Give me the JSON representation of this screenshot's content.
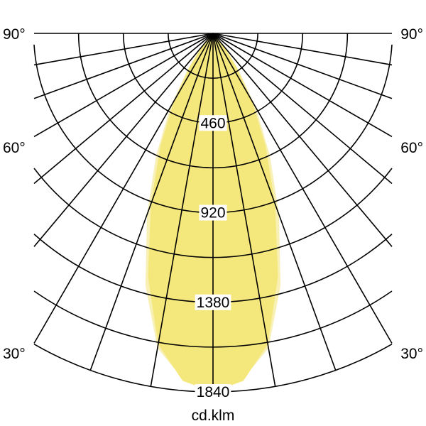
{
  "chart_data": {
    "type": "polar",
    "unit_label": "cd.klm",
    "radial_ticks": [
      460,
      920,
      1380,
      1840
    ],
    "radial_grid_step": 230,
    "rmax": 1840,
    "angle_labels": [
      {
        "angle": 90,
        "text": "90°"
      },
      {
        "angle": 60,
        "text": "60°"
      },
      {
        "angle": 30,
        "text": "30°"
      }
    ],
    "angle_grid_step_deg": 10,
    "grid": true,
    "fill_colors": {
      "primary": "#f4e77c",
      "secondary": "#f8f0b4"
    },
    "series": [
      {
        "angles": [
          0,
          5,
          10,
          15,
          20,
          25,
          30,
          35,
          40,
          50,
          60,
          90
        ],
        "values": [
          1840,
          1790,
          1620,
          1290,
          930,
          640,
          400,
          200,
          90,
          20,
          5,
          0
        ]
      },
      {
        "angles": [
          0,
          5,
          10,
          15,
          20,
          25,
          30,
          35,
          40,
          50,
          60,
          90
        ],
        "values": [
          1820,
          1780,
          1640,
          1340,
          990,
          690,
          440,
          230,
          100,
          25,
          5,
          0
        ]
      }
    ]
  }
}
